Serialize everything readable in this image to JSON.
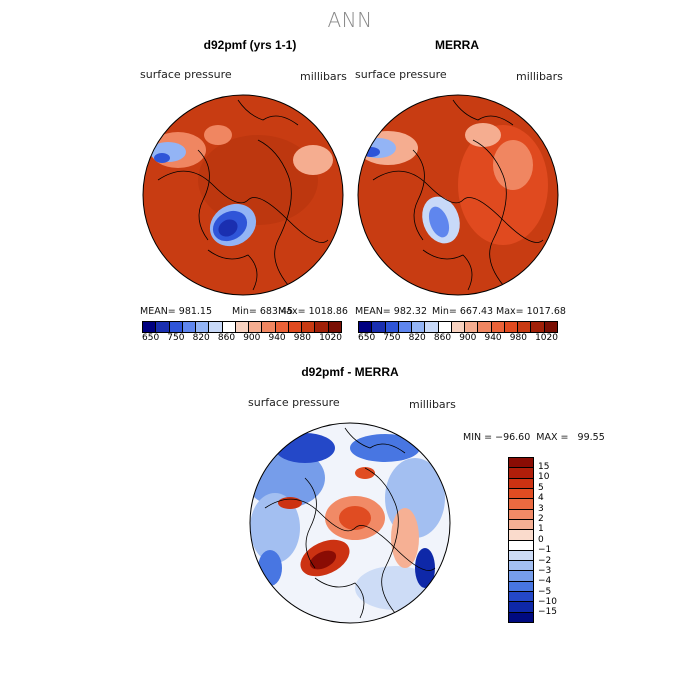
{
  "title": "ANN",
  "panel_left": {
    "title": "d92pmf (yrs 1-1)",
    "variable": "surface pressure",
    "units": "millibars",
    "mean": "MEAN= 981.15",
    "min": "Min= 683.45",
    "max": "Max= 1018.86"
  },
  "panel_right": {
    "title": "MERRA",
    "variable": "surface pressure",
    "units": "millibars",
    "mean": "MEAN= 982.32",
    "min": "Min= 667.43",
    "max": "Max= 1017.68"
  },
  "panel_diff": {
    "title": "d92pmf - MERRA",
    "variable": "surface pressure",
    "units": "millibars",
    "minmax": "MIN = −96.60  MAX =   99.55"
  },
  "abs_colorbar": {
    "labels": [
      "650",
      "750",
      "820",
      "860",
      "900",
      "940",
      "980",
      "1020"
    ],
    "colors": [
      "#000080",
      "#1a2fb0",
      "#2f55d8",
      "#5f86ee",
      "#93b4f5",
      "#c8d9f8",
      "#ffffff",
      "#f8d2c0",
      "#f5ad90",
      "#f08661",
      "#ea6238",
      "#e04a1f",
      "#c83a12",
      "#a02008",
      "#7a0f04"
    ]
  },
  "diff_colorbar": {
    "labels": [
      "15",
      "10",
      "5",
      "4",
      "3",
      "2",
      "1",
      "0",
      "−1",
      "−2",
      "−3",
      "−4",
      "−5",
      "−10",
      "−15"
    ],
    "colors": [
      "#8a0c04",
      "#b01e0a",
      "#cc3212",
      "#e04c22",
      "#ea6a40",
      "#f18a66",
      "#f6b094",
      "#fadbcc",
      "#ffffff",
      "#cddcf6",
      "#a3bff1",
      "#769dea",
      "#4876e2",
      "#2448c8",
      "#0e28a8",
      "#000a80"
    ]
  }
}
